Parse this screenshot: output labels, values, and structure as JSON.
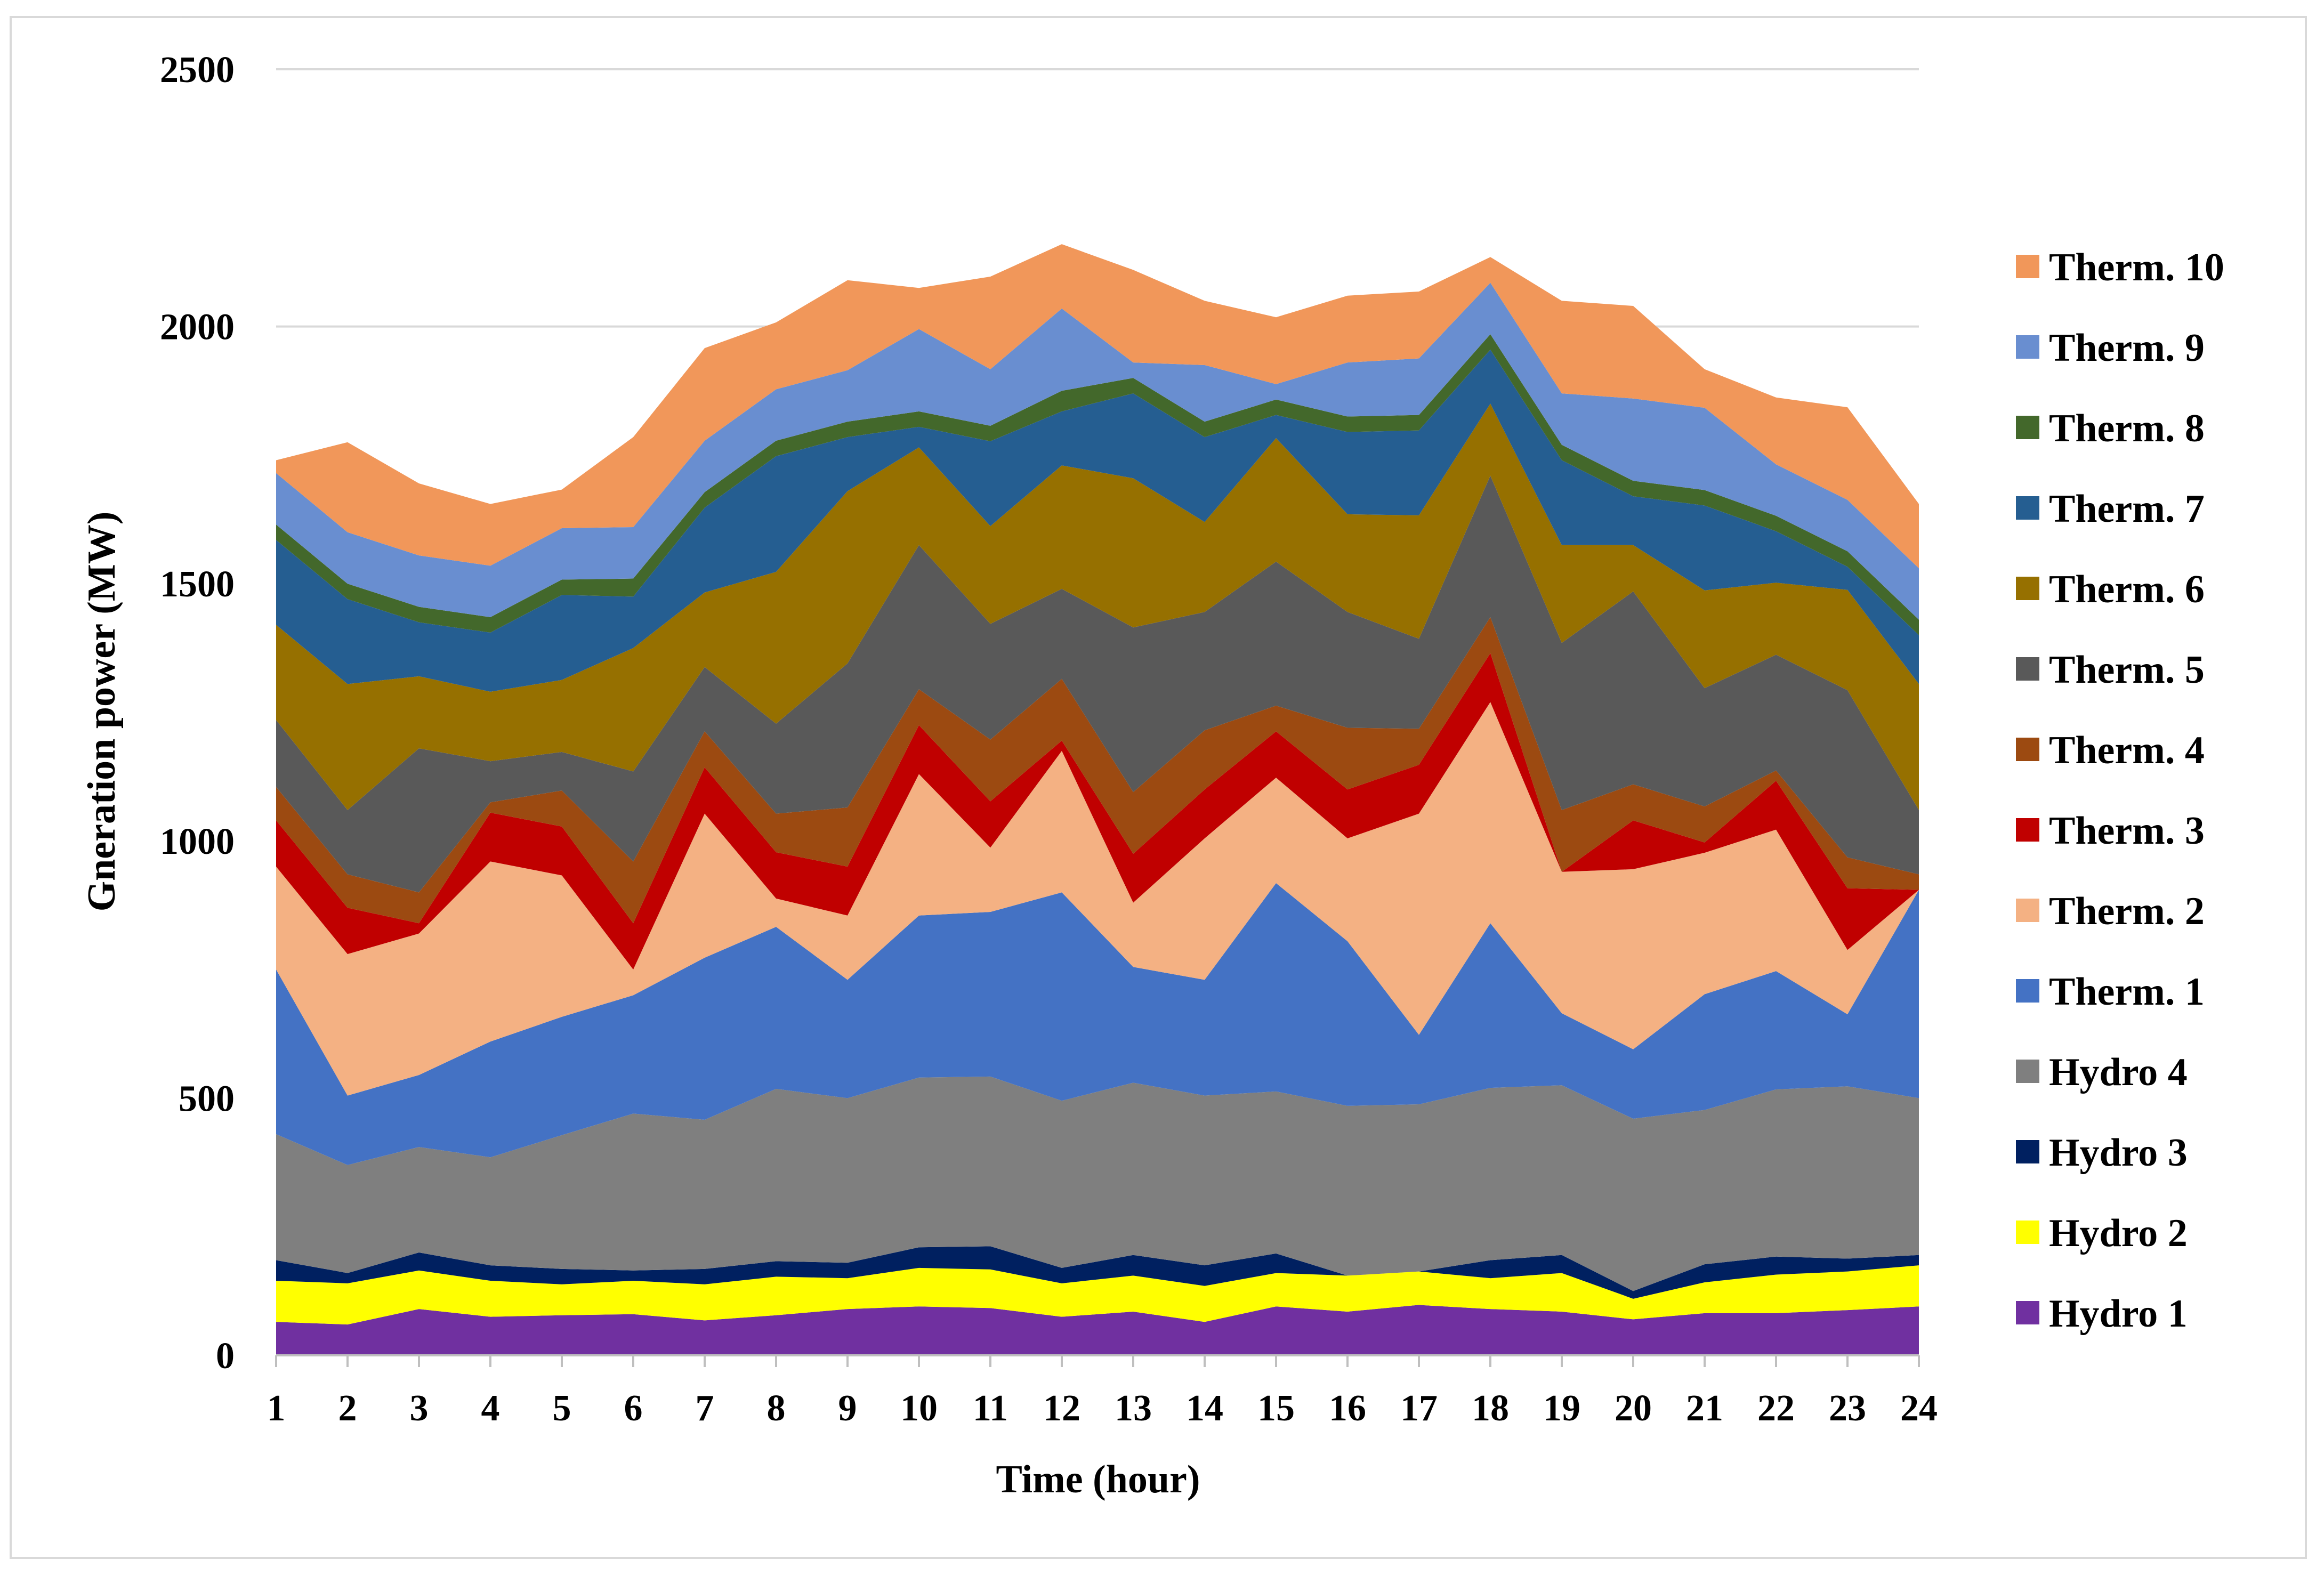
{
  "chart_data": {
    "type": "area",
    "stacked": true,
    "title": "",
    "xlabel": "Time (hour)",
    "ylabel": "Gneration power (MW)",
    "x": [
      1,
      2,
      3,
      4,
      5,
      6,
      7,
      8,
      9,
      10,
      11,
      12,
      13,
      14,
      15,
      16,
      17,
      18,
      19,
      20,
      21,
      22,
      23,
      24
    ],
    "ylim": [
      0,
      2500
    ],
    "yticks": [
      0,
      500,
      1000,
      1500,
      2000,
      2500
    ],
    "grid": "horizontal",
    "legend_position": "right",
    "series": [
      {
        "name": "Hydro 1",
        "color": "#7030a0",
        "values": [
          65,
          60,
          90,
          75,
          78,
          80,
          68,
          78,
          90,
          95,
          92,
          75,
          85,
          65,
          95,
          85,
          98,
          90,
          85,
          70,
          82,
          82,
          88,
          95
        ]
      },
      {
        "name": "Hydro 2",
        "color": "#ffff00",
        "values": [
          80,
          80,
          75,
          70,
          60,
          65,
          70,
          75,
          60,
          75,
          75,
          65,
          70,
          70,
          65,
          70,
          65,
          60,
          75,
          40,
          60,
          75,
          75,
          80
        ]
      },
      {
        "name": "Hydro 3",
        "color": "#002060",
        "values": [
          40,
          20,
          35,
          30,
          30,
          20,
          30,
          30,
          30,
          40,
          45,
          30,
          40,
          40,
          38,
          0,
          0,
          35,
          35,
          15,
          35,
          35,
          25,
          20
        ]
      },
      {
        "name": "Hydro 4",
        "color": "#7f7f7f",
        "values": [
          245,
          210,
          205,
          210,
          260,
          305,
          290,
          335,
          320,
          330,
          330,
          325,
          335,
          330,
          315,
          330,
          325,
          335,
          330,
          335,
          300,
          325,
          335,
          305
        ]
      },
      {
        "name": "Therm. 1",
        "color": "#4472c4",
        "values": [
          320,
          135,
          140,
          225,
          230,
          230,
          315,
          315,
          230,
          315,
          320,
          405,
          225,
          225,
          405,
          320,
          135,
          320,
          140,
          135,
          225,
          230,
          140,
          405
        ]
      },
      {
        "name": "Therm. 2",
        "color": "#f4b183",
        "values": [
          200,
          275,
          275,
          350,
          275,
          50,
          280,
          55,
          125,
          275,
          125,
          275,
          125,
          275,
          205,
          200,
          430,
          430,
          275,
          350,
          275,
          275,
          125,
          0
        ]
      },
      {
        "name": "Therm. 3",
        "color": "#c00000",
        "values": [
          90,
          90,
          20,
          95,
          95,
          90,
          90,
          90,
          95,
          95,
          90,
          20,
          95,
          95,
          90,
          95,
          95,
          95,
          0,
          95,
          20,
          95,
          120,
          0
        ]
      },
      {
        "name": "Therm. 4",
        "color": "#9c4a11",
        "values": [
          65,
          65,
          60,
          20,
          70,
          120,
          70,
          75,
          115,
          70,
          120,
          120,
          120,
          115,
          50,
          120,
          70,
          70,
          120,
          70,
          70,
          20,
          60,
          30
        ]
      },
      {
        "name": "Therm. 5",
        "color": "#595959",
        "values": [
          130,
          125,
          280,
          80,
          75,
          175,
          125,
          175,
          280,
          280,
          225,
          175,
          320,
          230,
          280,
          225,
          175,
          275,
          325,
          375,
          230,
          225,
          325,
          125
        ]
      },
      {
        "name": "Therm. 6",
        "color": "#967000",
        "values": [
          185,
          245,
          140,
          135,
          140,
          240,
          145,
          295,
          335,
          190,
          190,
          240,
          290,
          175,
          240,
          190,
          240,
          140,
          190,
          90,
          190,
          140,
          195,
          245
        ]
      },
      {
        "name": "Therm. 7",
        "color": "#255e91",
        "values": [
          165,
          165,
          105,
          115,
          165,
          100,
          165,
          225,
          105,
          40,
          165,
          105,
          165,
          165,
          45,
          160,
          165,
          105,
          165,
          95,
          165,
          100,
          45,
          95
        ]
      },
      {
        "name": "Therm. 8",
        "color": "#43682b",
        "values": [
          30,
          30,
          30,
          30,
          30,
          35,
          30,
          30,
          30,
          30,
          30,
          40,
          30,
          30,
          30,
          30,
          30,
          30,
          30,
          30,
          30,
          30,
          30,
          30
        ]
      },
      {
        "name": "Therm. 9",
        "color": "#698ed0",
        "values": [
          100,
          100,
          100,
          100,
          100,
          100,
          100,
          100,
          100,
          160,
          110,
          160,
          30,
          110,
          30,
          105,
          110,
          100,
          100,
          160,
          160,
          100,
          100,
          100
        ]
      },
      {
        "name": "Therm. 10",
        "color": "#f1975a",
        "values": [
          25,
          175,
          140,
          120,
          75,
          175,
          180,
          130,
          175,
          80,
          180,
          125,
          180,
          125,
          130,
          130,
          130,
          50,
          180,
          180,
          75,
          130,
          180,
          125
        ]
      }
    ]
  }
}
